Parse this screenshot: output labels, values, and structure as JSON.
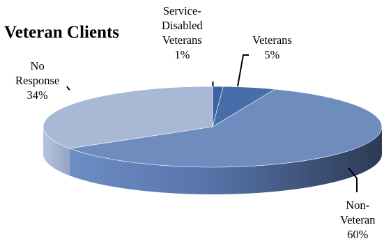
{
  "chart_data": {
    "type": "pie",
    "title": "Veteran Clients",
    "slices": [
      {
        "label_lines": [
          "Service-",
          "Disabled",
          "Veterans"
        ],
        "value": 1,
        "value_label": "1%",
        "color": "#3e63a0"
      },
      {
        "label_lines": [
          "Veterans"
        ],
        "value": 5,
        "value_label": "5%",
        "color": "#476ea9"
      },
      {
        "label_lines": [
          "Non-",
          "Veteran"
        ],
        "value": 60,
        "value_label": "60%",
        "color": "#6f8cbf"
      },
      {
        "label_lines": [
          "No",
          "Response"
        ],
        "value": 34,
        "value_label": "34%",
        "color": "#a9b8d4"
      }
    ],
    "legend": "none",
    "style": "3d-pie"
  }
}
